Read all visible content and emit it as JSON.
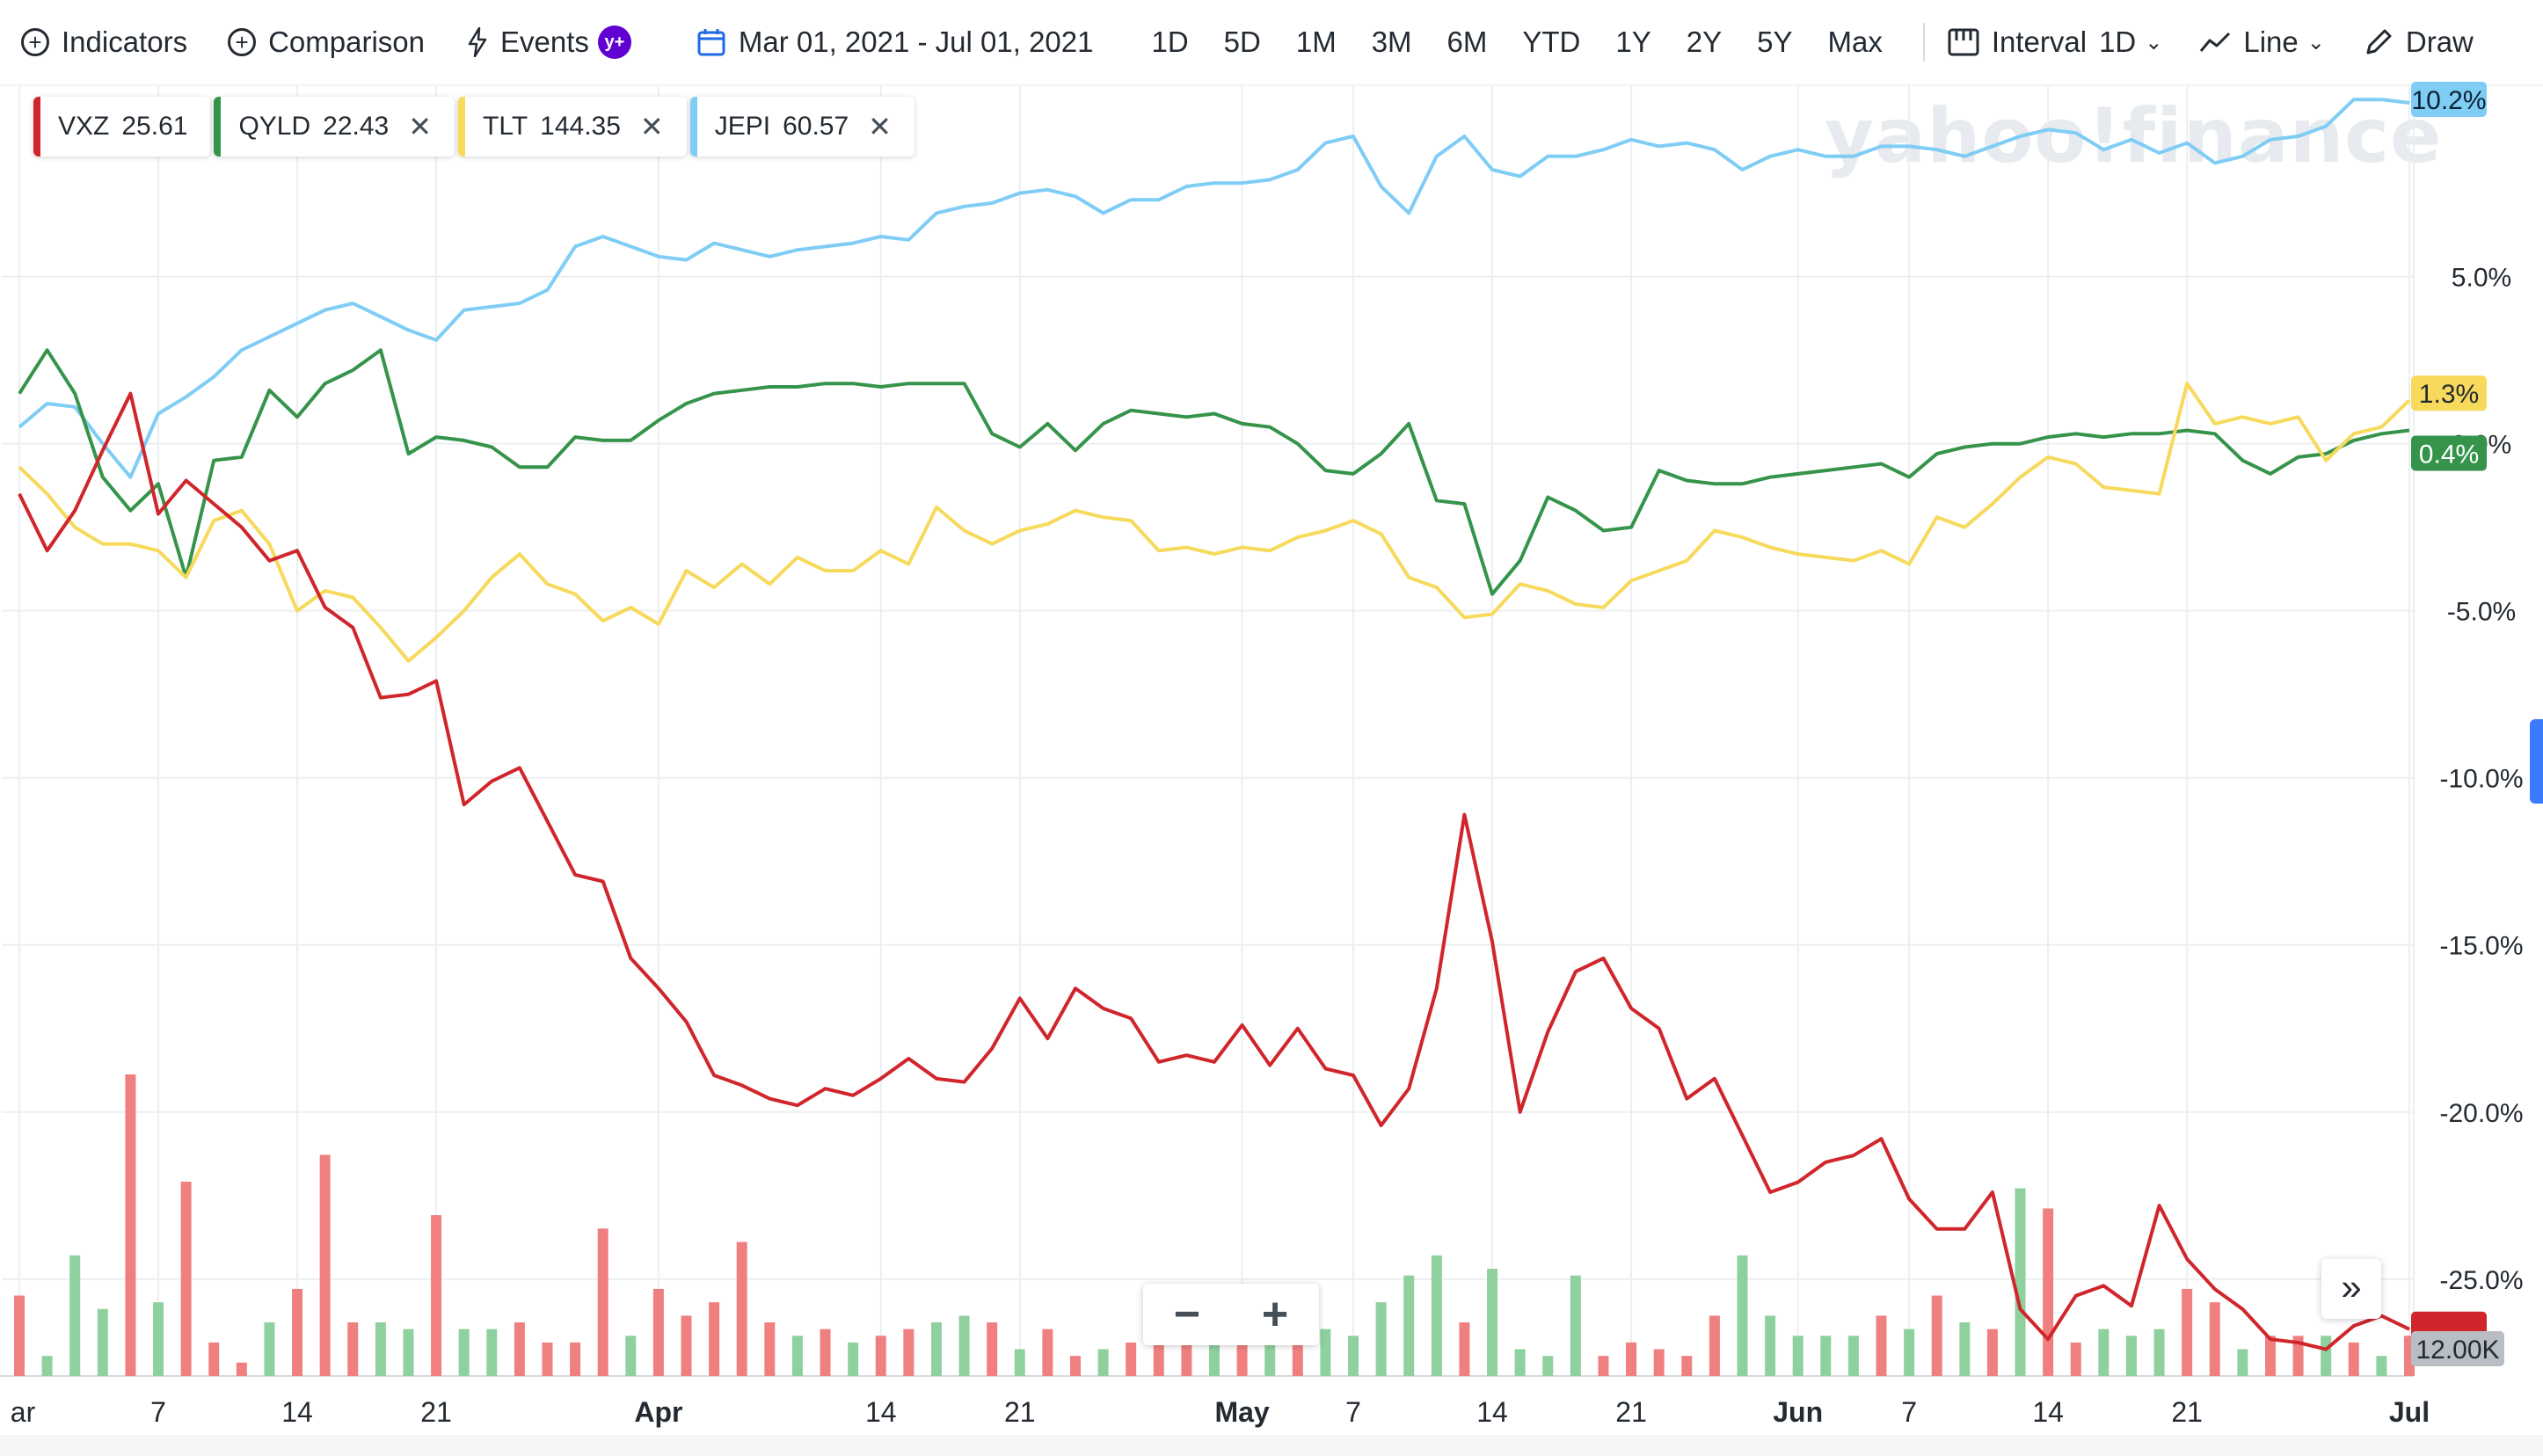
{
  "toolbar": {
    "indicators": "Indicators",
    "comparison": "Comparison",
    "events": "Events",
    "events_badge": "y+",
    "date_range": "Mar 01, 2021 - Jul 01, 2021",
    "ranges": [
      "1D",
      "5D",
      "1M",
      "3M",
      "6M",
      "YTD",
      "1Y",
      "2Y",
      "5Y",
      "Max"
    ],
    "interval_label": "Interval",
    "interval_value": "1D",
    "chart_type": "Line",
    "draw": "Draw"
  },
  "legend": [
    {
      "symbol": "VXZ",
      "price": "25.61",
      "color": "#d0252b",
      "removable": false
    },
    {
      "symbol": "QYLD",
      "price": "22.43",
      "color": "#359449",
      "removable": true
    },
    {
      "symbol": "TLT",
      "price": "144.35",
      "color": "#f7d95c",
      "removable": true
    },
    {
      "symbol": "JEPI",
      "price": "60.57",
      "color": "#7fcdf5",
      "removable": true
    }
  ],
  "watermark": "yahoo!finance",
  "zoom": {
    "minus": "−",
    "plus": "+"
  },
  "expand": "»",
  "chart_data": {
    "type": "line",
    "x": [
      "2021-03-01",
      "2021-03-02",
      "2021-03-03",
      "2021-03-04",
      "2021-03-05",
      "2021-03-08",
      "2021-03-09",
      "2021-03-10",
      "2021-03-11",
      "2021-03-12",
      "2021-03-15",
      "2021-03-16",
      "2021-03-17",
      "2021-03-18",
      "2021-03-19",
      "2021-03-22",
      "2021-03-23",
      "2021-03-24",
      "2021-03-25",
      "2021-03-26",
      "2021-03-29",
      "2021-03-30",
      "2021-03-31",
      "2021-04-01",
      "2021-04-05",
      "2021-04-06",
      "2021-04-07",
      "2021-04-08",
      "2021-04-09",
      "2021-04-12",
      "2021-04-13",
      "2021-04-14",
      "2021-04-15",
      "2021-04-16",
      "2021-04-19",
      "2021-04-20",
      "2021-04-21",
      "2021-04-22",
      "2021-04-23",
      "2021-04-26",
      "2021-04-27",
      "2021-04-28",
      "2021-04-29",
      "2021-04-30",
      "2021-05-03",
      "2021-05-04",
      "2021-05-05",
      "2021-05-06",
      "2021-05-07",
      "2021-05-10",
      "2021-05-11",
      "2021-05-12",
      "2021-05-13",
      "2021-05-14",
      "2021-05-17",
      "2021-05-18",
      "2021-05-19",
      "2021-05-20",
      "2021-05-21",
      "2021-05-24",
      "2021-05-25",
      "2021-05-26",
      "2021-05-27",
      "2021-05-28",
      "2021-06-01",
      "2021-06-02",
      "2021-06-03",
      "2021-06-04",
      "2021-06-07",
      "2021-06-08",
      "2021-06-09",
      "2021-06-10",
      "2021-06-11",
      "2021-06-14",
      "2021-06-15",
      "2021-06-16",
      "2021-06-17",
      "2021-06-18",
      "2021-06-21",
      "2021-06-22",
      "2021-06-23",
      "2021-06-24",
      "2021-06-25",
      "2021-06-28",
      "2021-06-29",
      "2021-06-30",
      "2021-07-01"
    ],
    "x_ticks": [
      {
        "date": "2021-03-01",
        "label": "ar"
      },
      {
        "date": "2021-03-08",
        "label": "7"
      },
      {
        "date": "2021-03-15",
        "label": "14"
      },
      {
        "date": "2021-03-22",
        "label": "21"
      },
      {
        "date": "2021-04-01",
        "label": "Apr"
      },
      {
        "date": "2021-04-14",
        "label": "14"
      },
      {
        "date": "2021-04-21",
        "label": "21"
      },
      {
        "date": "2021-05-03",
        "label": "May"
      },
      {
        "date": "2021-05-07",
        "label": "7"
      },
      {
        "date": "2021-05-14",
        "label": "14"
      },
      {
        "date": "2021-05-21",
        "label": "21"
      },
      {
        "date": "2021-06-01",
        "label": "Jun"
      },
      {
        "date": "2021-06-07",
        "label": "7"
      },
      {
        "date": "2021-06-14",
        "label": "14"
      },
      {
        "date": "2021-06-21",
        "label": "21"
      },
      {
        "date": "2021-07-01",
        "label": "Jul"
      }
    ],
    "y_ticks": [
      5,
      0,
      -5,
      -10,
      -15,
      -20,
      -25
    ],
    "y_tick_labels": [
      "5.0%",
      "0.0%",
      "-5.0%",
      "-10.0%",
      "-15.0%",
      "-20.0%",
      "-25.0%"
    ],
    "ylim": [
      -27.9,
      10.7
    ],
    "grid": true,
    "series": [
      {
        "name": "JEPI",
        "color": "#7fcdf5",
        "last_label": "10.2%",
        "values": [
          0.5,
          1.2,
          1.1,
          0.0,
          -1.0,
          0.9,
          1.4,
          2.0,
          2.8,
          3.2,
          3.6,
          4.0,
          4.2,
          3.8,
          3.4,
          3.1,
          4.0,
          4.1,
          4.2,
          4.6,
          5.9,
          6.2,
          5.9,
          5.6,
          5.5,
          6.0,
          5.8,
          5.6,
          5.8,
          5.9,
          6.0,
          6.2,
          6.1,
          6.9,
          7.1,
          7.2,
          7.5,
          7.6,
          7.4,
          6.9,
          7.3,
          7.3,
          7.7,
          7.8,
          7.8,
          7.9,
          8.2,
          9.0,
          9.2,
          7.7,
          6.9,
          8.6,
          9.2,
          8.2,
          8.0,
          8.6,
          8.6,
          8.8,
          9.1,
          8.9,
          9.0,
          8.8,
          8.2,
          8.6,
          8.8,
          8.6,
          8.6,
          8.9,
          8.9,
          8.8,
          8.6,
          8.9,
          9.2,
          9.4,
          9.3,
          8.8,
          9.1,
          8.7,
          9.0,
          8.4,
          8.6,
          9.1,
          9.2,
          9.5,
          10.3,
          10.3,
          10.2
        ]
      },
      {
        "name": "QYLD",
        "color": "#359449",
        "last_label": "0.4%",
        "values": [
          1.5,
          2.8,
          1.5,
          -1.0,
          -2.0,
          -1.2,
          -4.0,
          -0.5,
          -0.4,
          1.6,
          0.8,
          1.8,
          2.2,
          2.8,
          -0.3,
          0.2,
          0.1,
          -0.1,
          -0.7,
          -0.7,
          0.2,
          0.1,
          0.1,
          0.7,
          1.2,
          1.5,
          1.6,
          1.7,
          1.7,
          1.8,
          1.8,
          1.7,
          1.8,
          1.8,
          1.8,
          0.3,
          -0.1,
          0.6,
          -0.2,
          0.6,
          1.0,
          0.9,
          0.8,
          0.9,
          0.6,
          0.5,
          0.0,
          -0.8,
          -0.9,
          -0.3,
          0.6,
          -1.7,
          -1.8,
          -4.5,
          -3.5,
          -1.6,
          -2.0,
          -2.6,
          -2.5,
          -0.8,
          -1.1,
          -1.2,
          -1.2,
          -1.0,
          -0.9,
          -0.8,
          -0.7,
          -0.6,
          -1.0,
          -0.3,
          -0.1,
          0.0,
          0.0,
          0.2,
          0.3,
          0.2,
          0.3,
          0.3,
          0.4,
          0.3,
          -0.5,
          -0.9,
          -0.4,
          -0.3,
          0.1,
          0.3,
          0.4
        ]
      },
      {
        "name": "TLT",
        "color": "#f7d95c",
        "last_label": "1.3%",
        "values": [
          -0.7,
          -1.5,
          -2.5,
          -3.0,
          -3.0,
          -3.2,
          -4.0,
          -2.3,
          -2.0,
          -3.0,
          -5.0,
          -4.4,
          -4.6,
          -5.5,
          -6.5,
          -5.8,
          -5.0,
          -4.0,
          -3.3,
          -4.2,
          -4.5,
          -5.3,
          -4.9,
          -5.4,
          -3.8,
          -4.3,
          -3.6,
          -4.2,
          -3.4,
          -3.8,
          -3.8,
          -3.2,
          -3.6,
          -1.9,
          -2.6,
          -3.0,
          -2.6,
          -2.4,
          -2.0,
          -2.2,
          -2.3,
          -3.2,
          -3.1,
          -3.3,
          -3.1,
          -3.2,
          -2.8,
          -2.6,
          -2.3,
          -2.7,
          -4.0,
          -4.3,
          -5.2,
          -5.1,
          -4.2,
          -4.4,
          -4.8,
          -4.9,
          -4.1,
          -3.8,
          -3.5,
          -2.6,
          -2.8,
          -3.1,
          -3.3,
          -3.4,
          -3.5,
          -3.2,
          -3.6,
          -2.2,
          -2.5,
          -1.8,
          -1.0,
          -0.4,
          -0.6,
          -1.3,
          -1.4,
          -1.5,
          1.8,
          0.6,
          0.8,
          0.6,
          0.8,
          -0.5,
          0.3,
          0.5,
          1.3
        ]
      },
      {
        "name": "VXZ",
        "color": "#d0252b",
        "last_label": null,
        "values": [
          -1.5,
          -3.2,
          -2.0,
          -0.2,
          1.5,
          -2.1,
          -1.1,
          -1.8,
          -2.5,
          -3.5,
          -3.2,
          -4.9,
          -5.5,
          -7.6,
          -7.5,
          -7.1,
          -10.8,
          -10.1,
          -9.7,
          -11.3,
          -12.9,
          -13.1,
          -15.4,
          -16.3,
          -17.3,
          -18.9,
          -19.2,
          -19.6,
          -19.8,
          -19.3,
          -19.5,
          -19.0,
          -18.4,
          -19.0,
          -19.1,
          -18.1,
          -16.6,
          -17.8,
          -16.3,
          -16.9,
          -17.2,
          -18.5,
          -18.3,
          -18.5,
          -17.4,
          -18.6,
          -17.5,
          -18.7,
          -18.9,
          -20.4,
          -19.3,
          -16.3,
          -11.1,
          -14.9,
          -20.0,
          -17.6,
          -15.8,
          -15.4,
          -16.9,
          -17.5,
          -19.6,
          -19.0,
          -20.7,
          -22.4,
          -22.1,
          -21.5,
          -21.3,
          -20.8,
          -22.6,
          -23.5,
          -23.5,
          -22.4,
          -25.9,
          -26.8,
          -25.5,
          -25.2,
          -25.8,
          -22.8,
          -24.4,
          -25.3,
          -25.9,
          -26.8,
          -26.9,
          -27.1,
          -26.4,
          -26.1,
          -26.5
        ]
      }
    ],
    "volume": {
      "name": "volume",
      "last_label": "12.00K",
      "ymax": 45,
      "values": [
        12,
        3,
        18,
        10,
        45,
        11,
        29,
        5,
        2,
        8,
        13,
        33,
        8,
        8,
        7,
        24,
        7,
        7,
        8,
        5,
        5,
        22,
        6,
        13,
        9,
        11,
        20,
        8,
        6,
        7,
        5,
        6,
        7,
        8,
        9,
        8,
        4,
        7,
        3,
        4,
        5,
        12,
        7,
        7,
        7,
        8,
        7,
        7,
        6,
        11,
        15,
        18,
        8,
        16,
        4,
        3,
        15,
        3,
        5,
        4,
        3,
        9,
        18,
        9,
        6,
        6,
        6,
        9,
        7,
        12,
        8,
        7,
        28,
        25,
        5,
        7,
        6,
        7,
        13,
        11,
        4,
        6,
        6,
        6,
        5,
        3,
        6
      ],
      "up": [
        false,
        true,
        true,
        true,
        false,
        true,
        false,
        false,
        false,
        true,
        false,
        false,
        false,
        true,
        true,
        false,
        true,
        true,
        false,
        false,
        false,
        false,
        true,
        false,
        false,
        false,
        false,
        false,
        true,
        false,
        true,
        false,
        false,
        true,
        true,
        false,
        true,
        false,
        false,
        true,
        false,
        false,
        false,
        true,
        false,
        true,
        false,
        true,
        true,
        true,
        true,
        true,
        false,
        true,
        true,
        true,
        true,
        false,
        false,
        false,
        false,
        false,
        true,
        true,
        true,
        true,
        true,
        false,
        true,
        false,
        true,
        false,
        true,
        false,
        false,
        true,
        true,
        true,
        false,
        false,
        true,
        false,
        false,
        true,
        false,
        true,
        false
      ]
    }
  }
}
